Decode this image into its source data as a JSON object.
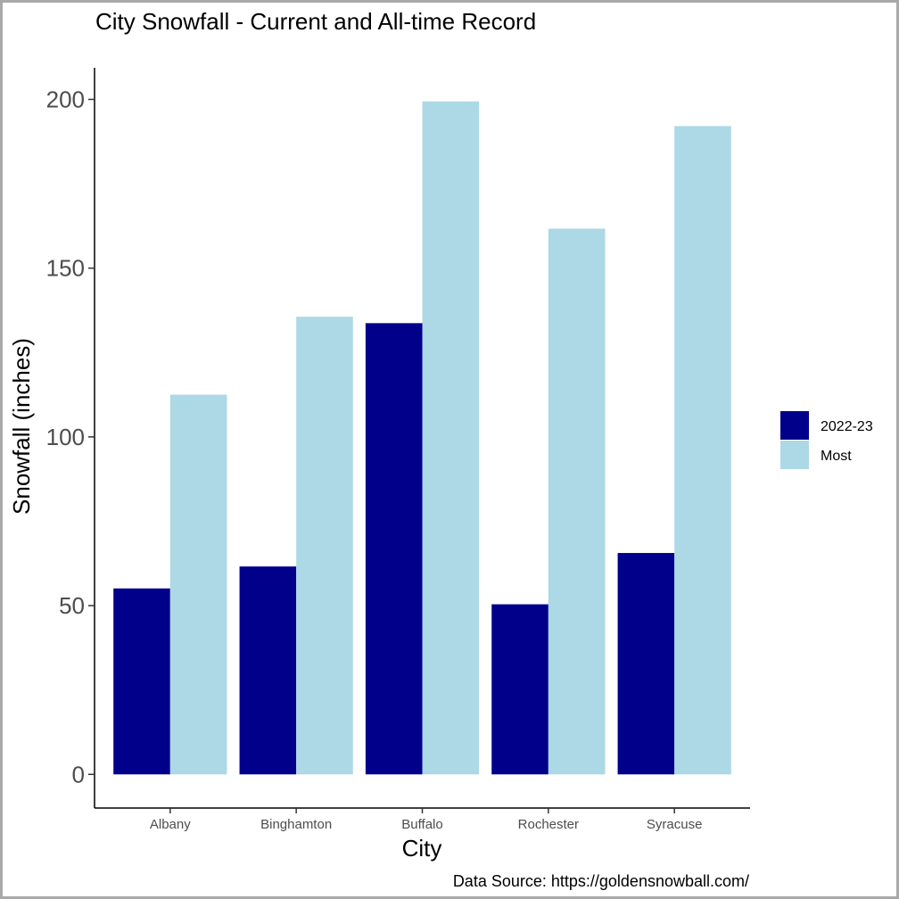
{
  "chart_data": {
    "type": "bar",
    "title": "City Snowfall - Current and All-time Record",
    "xlabel": "City",
    "ylabel": "Snowfall (inches)",
    "caption": "Data Source: https://goldensnowball.com/",
    "categories": [
      "Albany",
      "Binghamton",
      "Buffalo",
      "Rochester",
      "Syracuse"
    ],
    "series": [
      {
        "name": "2022-23",
        "color": "#00008b",
        "values": [
          55.1,
          61.6,
          133.7,
          50.4,
          65.6
        ]
      },
      {
        "name": "Most",
        "color": "#add8e6",
        "values": [
          112.5,
          135.6,
          199.4,
          161.7,
          192.1
        ]
      }
    ],
    "ylim": [
      -9.97,
      209.37
    ],
    "yticks": [
      0,
      50,
      100,
      150,
      200
    ],
    "legend_position": "right",
    "grid": false
  }
}
